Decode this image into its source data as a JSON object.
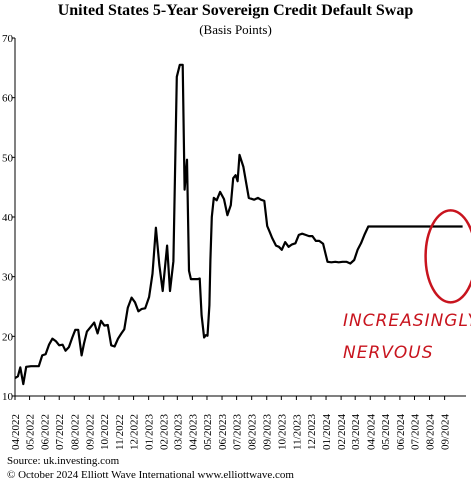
{
  "colors": {
    "line": "#000000",
    "accent": "#c8141e",
    "axis": "#000000"
  },
  "chart_data": {
    "type": "line",
    "title": "United States 5-Year Sovereign Credit Default Swap",
    "subtitle": "(Basis Points)",
    "xlabel": "",
    "ylabel": "",
    "ylim": [
      10,
      70
    ],
    "yticks": [
      10,
      20,
      30,
      40,
      50,
      60,
      70
    ],
    "xlim": [
      "2022-04-01",
      "2024-10-15"
    ],
    "grid": false,
    "x_tick_labels": [
      "04/2022",
      "05/2022",
      "06/2022",
      "07/2022",
      "08/2022",
      "09/2022",
      "10/2022",
      "11/2022",
      "12/2022",
      "01/2023",
      "02/2023",
      "03/2023",
      "04/2023",
      "05/2023",
      "06/2023",
      "07/2023",
      "08/2023",
      "09/2023",
      "10/2023",
      "11/2023",
      "12/2023",
      "01/2024",
      "02/2024",
      "03/2024",
      "04/2024",
      "05/2024",
      "06/2024",
      "07/2024",
      "08/2024",
      "09/2024"
    ],
    "x_tick_dates": [
      "2022-04-01",
      "2022-05-01",
      "2022-06-01",
      "2022-07-01",
      "2022-08-01",
      "2022-09-01",
      "2022-10-01",
      "2022-11-01",
      "2022-12-01",
      "2023-01-01",
      "2023-02-01",
      "2023-03-01",
      "2023-04-01",
      "2023-05-01",
      "2023-06-01",
      "2023-07-01",
      "2023-08-01",
      "2023-09-01",
      "2023-10-01",
      "2023-11-01",
      "2023-12-01",
      "2024-01-01",
      "2024-02-01",
      "2024-03-01",
      "2024-04-01",
      "2024-05-01",
      "2024-06-01",
      "2024-07-01",
      "2024-08-01",
      "2024-09-01"
    ],
    "series": [
      {
        "x": [
          "2022-04-01",
          "2022-04-07",
          "2022-04-12",
          "2022-04-18",
          "2022-04-24",
          "2022-05-04",
          "2022-05-14",
          "2022-05-20",
          "2022-05-27",
          "2022-06-03",
          "2022-06-10",
          "2022-06-17",
          "2022-06-24",
          "2022-07-01",
          "2022-07-08",
          "2022-07-14",
          "2022-07-21",
          "2022-07-28",
          "2022-08-03",
          "2022-08-09",
          "2022-08-16",
          "2022-08-21",
          "2022-08-27",
          "2022-09-04",
          "2022-09-11",
          "2022-09-18",
          "2022-09-25",
          "2022-10-02",
          "2022-10-09",
          "2022-10-16",
          "2022-10-23",
          "2022-10-30",
          "2022-11-06",
          "2022-11-12",
          "2022-11-19",
          "2022-11-27",
          "2022-12-04",
          "2022-12-11",
          "2022-12-18",
          "2022-12-25",
          "2023-01-02",
          "2023-01-09",
          "2023-01-16",
          "2023-01-23",
          "2023-01-30",
          "2023-02-08",
          "2023-02-14",
          "2023-02-21",
          "2023-02-28",
          "2023-03-06",
          "2023-03-12",
          "2023-03-16",
          "2023-03-21",
          "2023-03-25",
          "2023-03-29",
          "2023-04-03",
          "2023-04-07",
          "2023-04-12",
          "2023-04-16",
          "2023-04-20",
          "2023-04-25",
          "2023-04-29",
          "2023-05-02",
          "2023-05-06",
          "2023-05-08",
          "2023-05-11",
          "2023-05-15",
          "2023-05-21",
          "2023-05-28",
          "2023-06-05",
          "2023-06-12",
          "2023-06-19",
          "2023-06-24",
          "2023-06-29",
          "2023-07-03",
          "2023-07-07",
          "2023-07-15",
          "2023-07-26",
          "2023-08-06",
          "2023-08-14",
          "2023-08-20",
          "2023-08-27",
          "2023-09-02",
          "2023-09-07",
          "2023-09-12",
          "2023-09-20",
          "2023-09-26",
          "2023-10-02",
          "2023-10-09",
          "2023-10-16",
          "2023-10-23",
          "2023-10-30",
          "2023-11-06",
          "2023-11-13",
          "2023-11-20",
          "2023-11-27",
          "2023-12-04",
          "2023-12-11",
          "2023-12-18",
          "2023-12-26",
          "2024-01-04",
          "2024-01-12",
          "2024-01-20",
          "2024-01-27",
          "2024-02-04",
          "2024-02-12",
          "2024-02-20",
          "2024-02-28",
          "2024-03-06",
          "2024-03-13",
          "2024-03-20",
          "2024-03-28",
          "2024-04-05",
          "2024-04-13",
          "2024-04-21",
          "2024-04-29",
          "2024-05-07",
          "2024-05-14",
          "2024-05-22",
          "2024-05-30",
          "2024-06-08",
          "2024-06-16",
          "2024-06-24",
          "2024-07-01",
          "2024-07-08",
          "2024-07-15",
          "2024-07-22",
          "2024-07-29",
          "2024-08-05",
          "2024-08-12",
          "2024-08-19",
          "2024-08-26",
          "2024-09-02",
          "2024-09-08",
          "2024-09-15",
          "2024-09-22",
          "2024-09-30",
          "2024-10-08"
        ],
        "y": [
          13.0,
          13.3,
          14.8,
          12.0,
          14.9,
          15.0,
          15.0,
          15.0,
          16.8,
          17.0,
          18.6,
          19.6,
          19.2,
          18.5,
          18.6,
          17.6,
          18.2,
          19.8,
          21.1,
          21.1,
          16.8,
          18.8,
          20.8,
          21.6,
          22.3,
          20.5,
          22.6,
          21.8,
          21.9,
          18.5,
          18.3,
          19.6,
          20.5,
          21.2,
          24.8,
          26.5,
          25.7,
          24.2,
          24.6,
          24.7,
          26.6,
          30.5,
          38.2,
          32.0,
          27.6,
          35.2,
          27.6,
          32.6,
          63.5,
          65.5,
          65.5,
          44.6,
          49.6,
          31.0,
          29.6,
          29.6,
          29.6,
          29.6,
          29.7,
          23.5,
          19.8,
          20.2,
          20.1,
          25.2,
          32.8,
          40.0,
          43.2,
          42.8,
          44.2,
          43.0,
          40.3,
          42.0,
          46.5,
          47.0,
          46.0,
          50.4,
          48.4,
          43.2,
          42.9,
          43.2,
          42.9,
          42.7,
          38.5,
          37.5,
          36.5,
          35.2,
          35.0,
          34.5,
          35.8,
          35.0,
          35.4,
          35.6,
          37.0,
          37.2,
          37.0,
          36.8,
          36.8,
          36.0,
          36.0,
          35.5,
          32.5,
          32.4,
          32.5,
          32.4,
          32.5,
          32.5,
          32.2,
          32.8,
          34.5,
          35.6,
          37.0,
          38.4,
          38.4,
          38.4,
          38.4,
          38.4,
          38.4,
          38.4,
          38.4,
          38.4,
          38.4,
          38.4,
          38.4,
          38.4,
          38.4,
          38.4,
          38.4,
          38.4,
          38.4,
          38.4,
          38.4,
          38.4,
          38.4,
          38.4,
          38.4,
          38.4,
          38.4,
          38.4
        ]
      }
    ],
    "annotations": [
      {
        "text": "INCREASINGLY",
        "type": "label"
      },
      {
        "text": "NERVOUS",
        "type": "label"
      }
    ],
    "highlight": {
      "shape": "circle",
      "around": "latest values (08/2024–09/2024)"
    }
  },
  "footer": {
    "source": "Source: uk.investing.com",
    "copyright": "© October 2024   Elliott Wave International   www.elliottwave.com"
  }
}
